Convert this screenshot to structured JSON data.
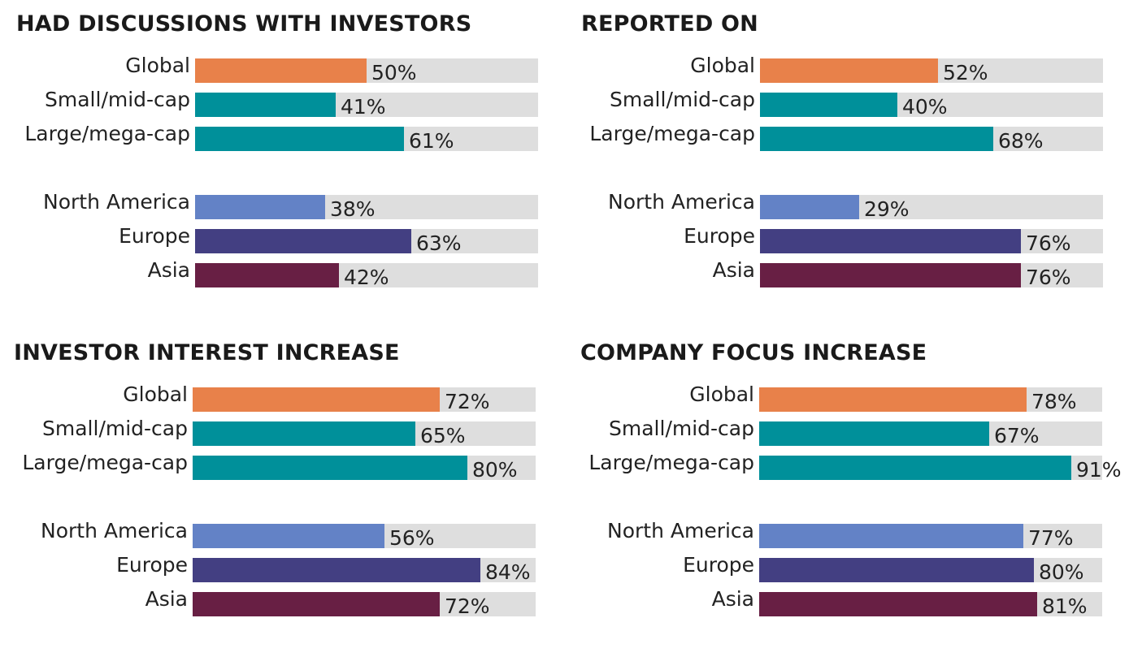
{
  "colors": {
    "Global": "#e8814a",
    "Small/mid-cap": "#00909a",
    "Large/mega-cap": "#00909a",
    "North America": "#6382c6",
    "Europe": "#433f82",
    "Asia": "#681f44",
    "track": "#dedede"
  },
  "chart_data": [
    {
      "type": "bar",
      "title": "HAD DISCUSSIONS WITH INVESTORS",
      "categories": [
        "Global",
        "Small/mid-cap",
        "Large/mega-cap",
        "North America",
        "Europe",
        "Asia"
      ],
      "values": [
        50,
        41,
        61,
        38,
        63,
        42
      ],
      "labels": [
        "50%",
        "41%",
        "61%",
        "38%",
        "63%",
        "42%"
      ],
      "xlim": [
        0,
        100
      ]
    },
    {
      "type": "bar",
      "title": "REPORTED ON",
      "categories": [
        "Global",
        "Small/mid-cap",
        "Large/mega-cap",
        "North America",
        "Europe",
        "Asia"
      ],
      "values": [
        52,
        40,
        68,
        29,
        76,
        76
      ],
      "labels": [
        "52%",
        "40%",
        "68%",
        "29%",
        "76%",
        "76%"
      ],
      "xlim": [
        0,
        100
      ]
    },
    {
      "type": "bar",
      "title": "INVESTOR INTEREST INCREASE",
      "categories": [
        "Global",
        "Small/mid-cap",
        "Large/mega-cap",
        "North America",
        "Europe",
        "Asia"
      ],
      "values": [
        72,
        65,
        80,
        56,
        84,
        72
      ],
      "labels": [
        "72%",
        "65%",
        "80%",
        "56%",
        "84%",
        "72%"
      ],
      "xlim": [
        0,
        100
      ]
    },
    {
      "type": "bar",
      "title": "COMPANY FOCUS INCREASE",
      "categories": [
        "Global",
        "Small/mid-cap",
        "Large/mega-cap",
        "North America",
        "Europe",
        "Asia"
      ],
      "values": [
        78,
        67,
        91,
        77,
        80,
        81
      ],
      "labels": [
        "78%",
        "67%",
        "91%",
        "77%",
        "80%",
        "81%"
      ],
      "xlim": [
        0,
        100
      ]
    }
  ]
}
